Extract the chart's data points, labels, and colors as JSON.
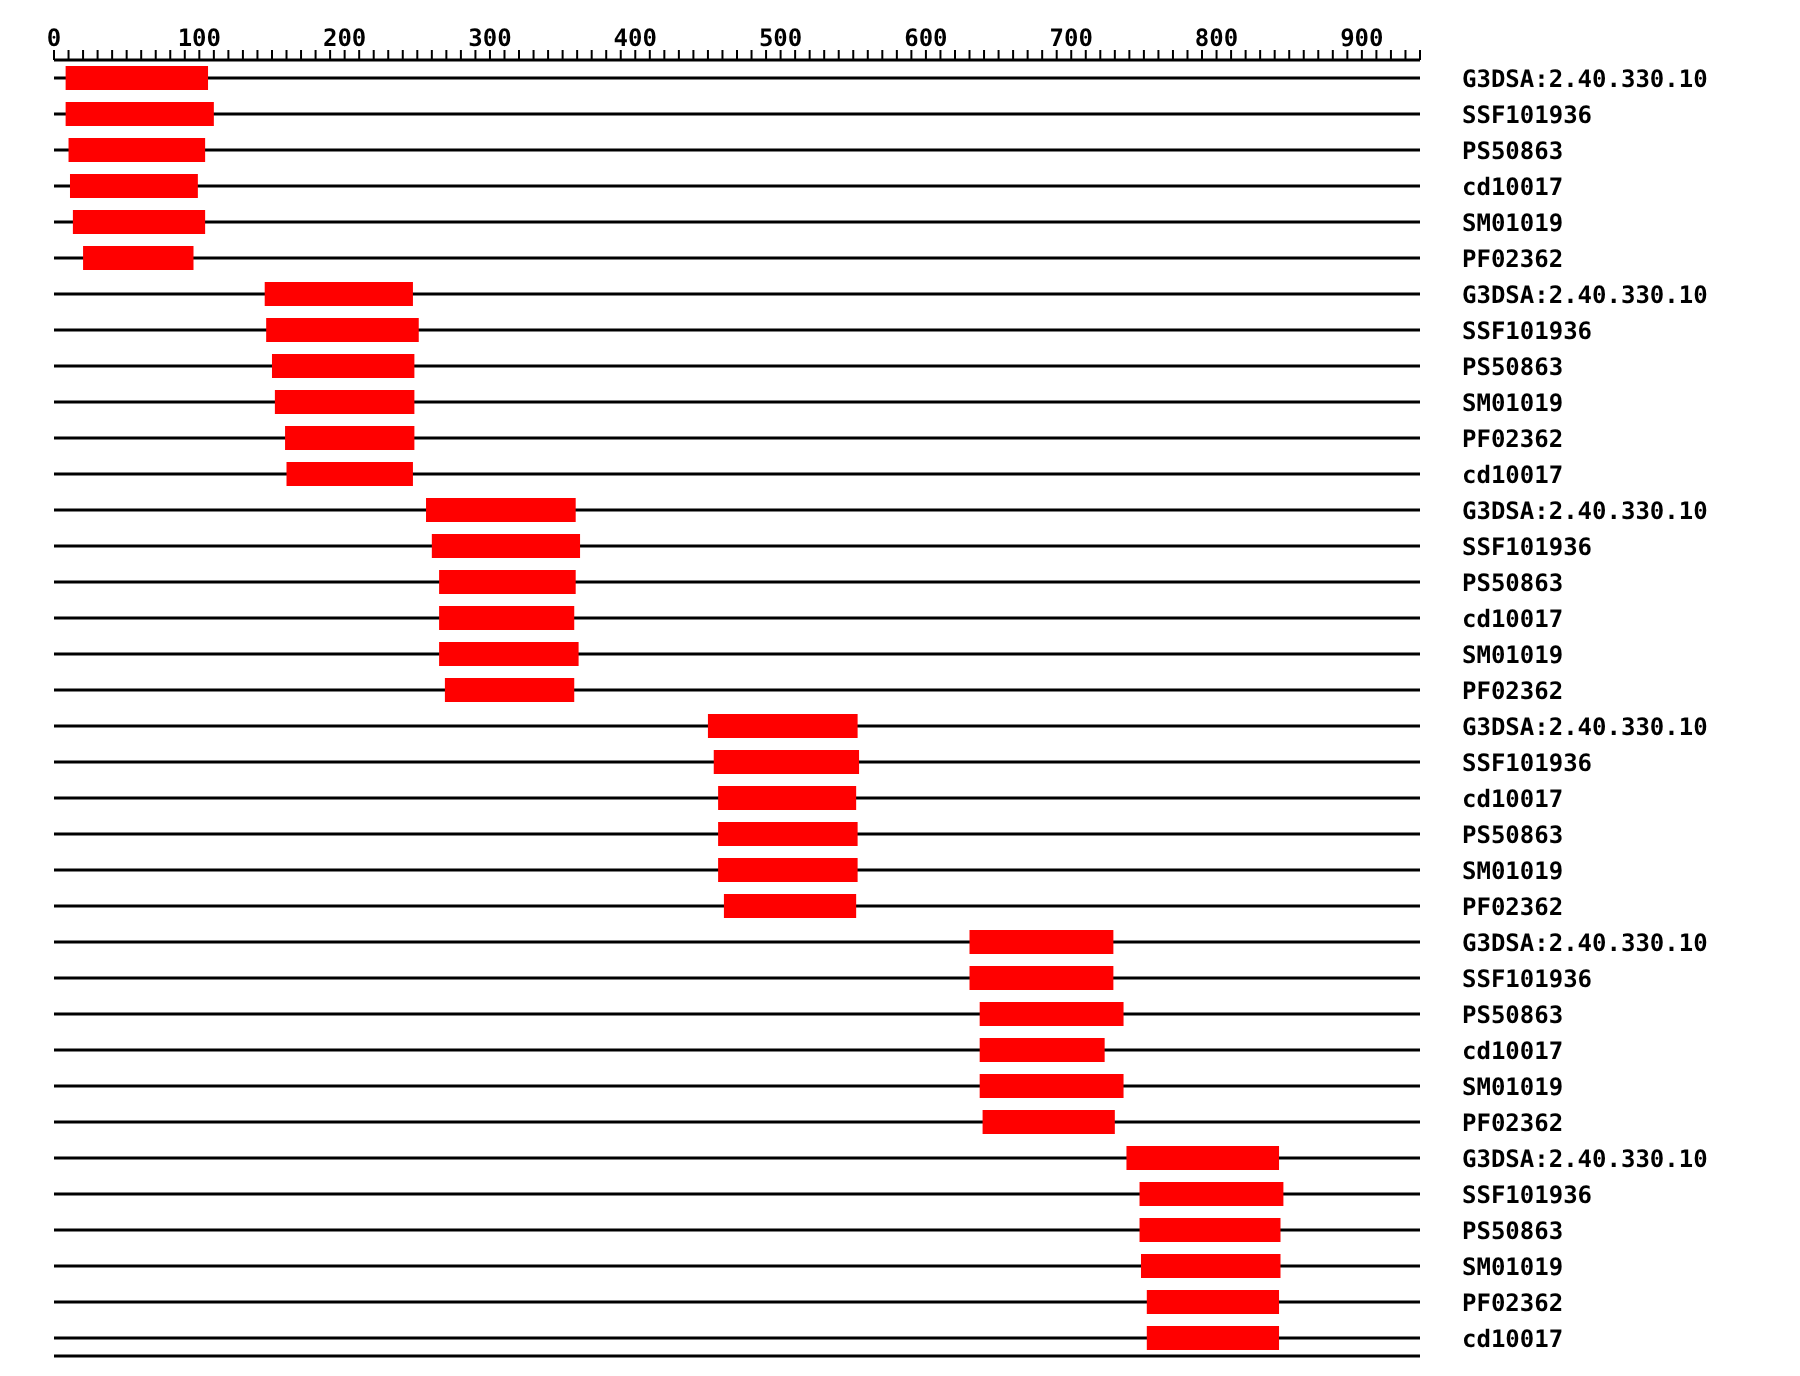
{
  "chart_data": {
    "type": "bar",
    "orientation": "horizontal",
    "color": "#ff0000",
    "grid": "y",
    "categories": [
      "G3DSA:2.40.330.10",
      "SSF101936",
      "PS50863",
      "cd10017",
      "SM01019",
      "PF02362",
      "G3DSA:2.40.330.10",
      "SSF101936",
      "PS50863",
      "SM01019",
      "PF02362",
      "cd10017",
      "G3DSA:2.40.330.10",
      "SSF101936",
      "PS50863",
      "cd10017",
      "SM01019",
      "PF02362",
      "G3DSA:2.40.330.10",
      "SSF101936",
      "cd10017",
      "PS50863",
      "SM01019",
      "PF02362",
      "G3DSA:2.40.330.10",
      "SSF101936",
      "PS50863",
      "cd10017",
      "SM01019",
      "PF02362",
      "G3DSA:2.40.330.10",
      "SSF101936",
      "PS50863",
      "SM01019",
      "PF02362",
      "cd10017"
    ],
    "base": [
      8,
      8,
      10,
      11,
      13,
      20,
      145,
      146,
      150,
      152,
      159,
      160,
      256,
      260,
      265,
      265,
      265,
      269,
      450,
      454,
      457,
      457,
      457,
      461,
      630,
      630,
      637,
      637,
      637,
      639,
      738,
      747,
      747,
      748,
      752,
      752
    ],
    "values": [
      98,
      102,
      94,
      88,
      91,
      76,
      102,
      105,
      98,
      96,
      89,
      87,
      103,
      102,
      94,
      93,
      96,
      89,
      103,
      100,
      95,
      96,
      96,
      91,
      99,
      99,
      99,
      86,
      99,
      91,
      105,
      99,
      97,
      96,
      91,
      91
    ],
    "xlim": [
      0,
      940
    ],
    "xticks": [
      0,
      {
        "value": 10,
        "label": null
      },
      {
        "value": 20,
        "label": null
      },
      {
        "value": 30,
        "label": null
      },
      {
        "value": 40,
        "label": null
      },
      {
        "value": 50,
        "label": null
      },
      {
        "value": 60,
        "label": null
      },
      {
        "value": 70,
        "label": null
      },
      {
        "value": 80,
        "label": null
      },
      {
        "value": 90,
        "label": null
      },
      100,
      {
        "value": 110,
        "label": null
      },
      {
        "value": 120,
        "label": null
      },
      {
        "value": 130,
        "label": null
      },
      {
        "value": 140,
        "label": null
      },
      {
        "value": 150,
        "label": null
      },
      {
        "value": 160,
        "label": null
      },
      {
        "value": 170,
        "label": null
      },
      {
        "value": 180,
        "label": null
      },
      {
        "value": 190,
        "label": null
      },
      200,
      {
        "value": 210,
        "label": null
      },
      {
        "value": 220,
        "label": null
      },
      {
        "value": 230,
        "label": null
      },
      {
        "value": 240,
        "label": null
      },
      {
        "value": 250,
        "label": null
      },
      {
        "value": 260,
        "label": null
      },
      {
        "value": 270,
        "label": null
      },
      {
        "value": 280,
        "label": null
      },
      {
        "value": 290,
        "label": null
      },
      300,
      {
        "value": 310,
        "label": null
      },
      {
        "value": 320,
        "label": null
      },
      {
        "value": 330,
        "label": null
      },
      {
        "value": 340,
        "label": null
      },
      {
        "value": 350,
        "label": null
      },
      {
        "value": 360,
        "label": null
      },
      {
        "value": 370,
        "label": null
      },
      {
        "value": 380,
        "label": null
      },
      {
        "value": 390,
        "label": null
      },
      400,
      {
        "value": 410,
        "label": null
      },
      {
        "value": 420,
        "label": null
      },
      {
        "value": 430,
        "label": null
      },
      {
        "value": 440,
        "label": null
      },
      {
        "value": 450,
        "label": null
      },
      {
        "value": 460,
        "label": null
      },
      {
        "value": 470,
        "label": null
      },
      {
        "value": 480,
        "label": null
      },
      {
        "value": 490,
        "label": null
      },
      500,
      {
        "value": 510,
        "label": null
      },
      {
        "value": 520,
        "label": null
      },
      {
        "value": 530,
        "label": null
      },
      {
        "value": 540,
        "label": null
      },
      {
        "value": 550,
        "label": null
      },
      {
        "value": 560,
        "label": null
      },
      {
        "value": 570,
        "label": null
      },
      {
        "value": 580,
        "label": null
      },
      {
        "value": 590,
        "label": null
      },
      600,
      {
        "value": 610,
        "label": null
      },
      {
        "value": 620,
        "label": null
      },
      {
        "value": 630,
        "label": null
      },
      {
        "value": 640,
        "label": null
      },
      {
        "value": 650,
        "label": null
      },
      {
        "value": 660,
        "label": null
      },
      {
        "value": 670,
        "label": null
      },
      {
        "value": 680,
        "label": null
      },
      {
        "value": 690,
        "label": null
      },
      700,
      {
        "value": 710,
        "label": null
      },
      {
        "value": 720,
        "label": null
      },
      {
        "value": 730,
        "label": null
      },
      {
        "value": 740,
        "label": null
      },
      {
        "value": 750,
        "label": null
      },
      {
        "value": 760,
        "label": null
      },
      {
        "value": 770,
        "label": null
      },
      {
        "value": 780,
        "label": null
      },
      {
        "value": 790,
        "label": null
      },
      800,
      {
        "value": 810,
        "label": null
      },
      {
        "value": 820,
        "label": null
      },
      {
        "value": 830,
        "label": null
      },
      {
        "value": 840,
        "label": null
      },
      {
        "value": 850,
        "label": null
      },
      {
        "value": 860,
        "label": null
      },
      {
        "value": 870,
        "label": null
      },
      {
        "value": 880,
        "label": null
      },
      {
        "value": 890,
        "label": null
      },
      900,
      {
        "value": 910,
        "label": null
      },
      {
        "value": 920,
        "label": null
      },
      {
        "value": 930,
        "label": null
      },
      {
        "value": 940,
        "label": null
      }
    ]
  }
}
